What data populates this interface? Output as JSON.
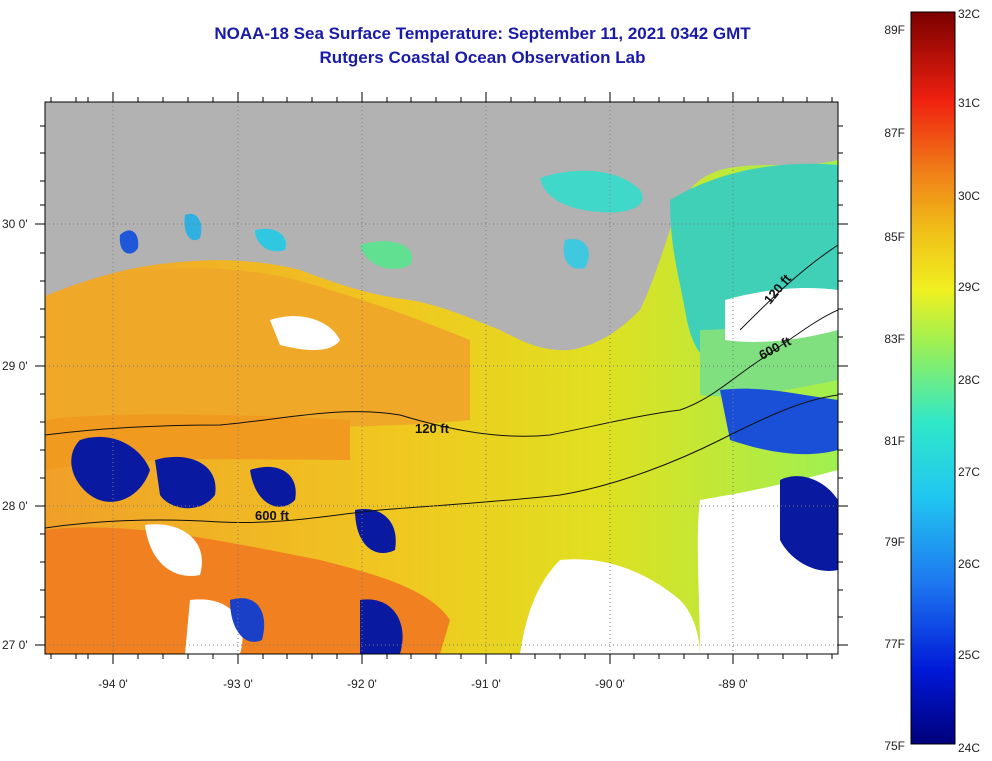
{
  "header": {
    "title": "NOAA-18 Sea Surface Temperature:  September 11, 2021 0342 GMT",
    "subtitle": "Rutgers Coastal Ocean Observation Lab"
  },
  "map": {
    "x_ticks": [
      "-94 0'",
      "-93 0'",
      "-92 0'",
      "-91 0'",
      "-90 0'",
      "-89 0'"
    ],
    "y_ticks": [
      "30 0'",
      "29 0'",
      "28 0'",
      "27 0'"
    ],
    "contour_labels": [
      "120 ft",
      "600 ft",
      "120 ft",
      "600 ft"
    ],
    "colors": {
      "land": "#b2b2b2",
      "cloud": "#ffffff",
      "cold": "#0a1aa0",
      "warm": "#f07818",
      "mid": "#f0e020",
      "cool": "#40d0c0"
    }
  },
  "colorbar": {
    "fahrenheit": [
      "89F",
      "87F",
      "85F",
      "83F",
      "81F",
      "79F",
      "77F",
      "75F"
    ],
    "celsius": [
      "32C",
      "31C",
      "30C",
      "29C",
      "28C",
      "27C",
      "26C",
      "25C",
      "24C"
    ]
  }
}
